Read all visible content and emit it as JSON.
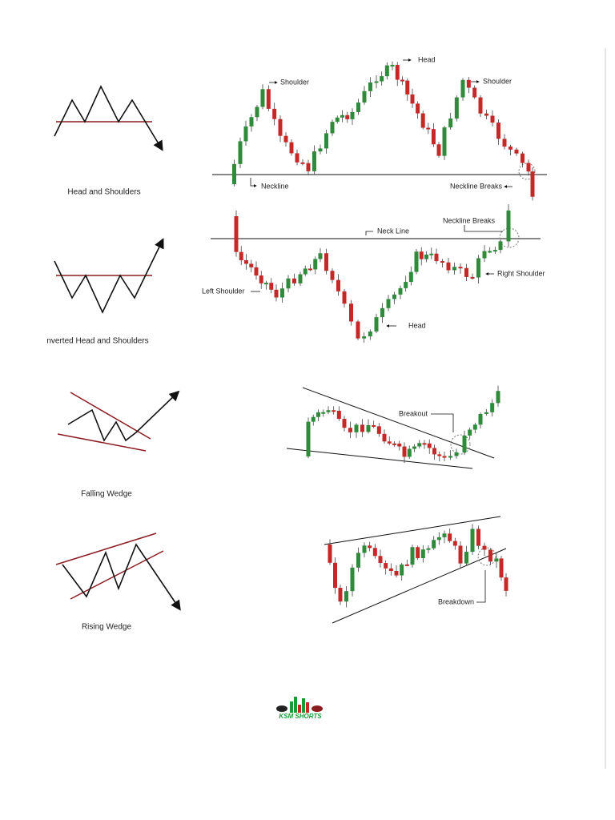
{
  "patterns": [
    {
      "title": "Head and Shoulders",
      "annotations": [
        "Shoulder",
        "Head",
        "Shoulder",
        "Neckline",
        "Neckline Breaks"
      ]
    },
    {
      "title": "nverted Head and Shoulders",
      "annotations": [
        "Neck Line",
        "Neckline Breaks",
        "Left Shoulder",
        "Right Shoulder",
        "Head"
      ]
    },
    {
      "title": "Falling Wedge",
      "annotations": [
        "Breakout"
      ]
    },
    {
      "title": "Rising Wedge",
      "annotations": [
        "Breakdown"
      ]
    }
  ],
  "logo": {
    "text": "KSM SHORTS"
  }
}
